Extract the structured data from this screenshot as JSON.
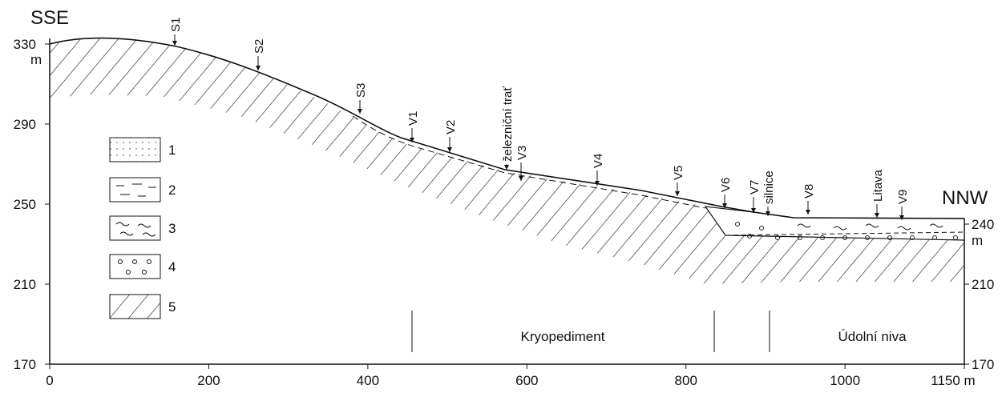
{
  "left_label": "SSE",
  "right_label": "NNW",
  "x_axis": {
    "ticks": [
      0,
      200,
      400,
      600,
      800,
      1000,
      {
        "value": 1150,
        "label": "1150 m"
      }
    ]
  },
  "y_axis_left": {
    "ticks": [
      170,
      210,
      250,
      290,
      330
    ],
    "unit": "m"
  },
  "y_axis_right": {
    "ticks": [
      170,
      210,
      240
    ],
    "unit": "m"
  },
  "stations": [
    "S1",
    "S2",
    "S3",
    "V1",
    "V2",
    "železniční trať",
    "V3",
    "V4",
    "V5",
    "V6",
    "V7",
    "silnice",
    "V8",
    "Litava",
    "V9"
  ],
  "legend": [
    "1",
    "2",
    "3",
    "4",
    "5"
  ],
  "zones": [
    "Kryopediment",
    "Údolní niva"
  ]
}
